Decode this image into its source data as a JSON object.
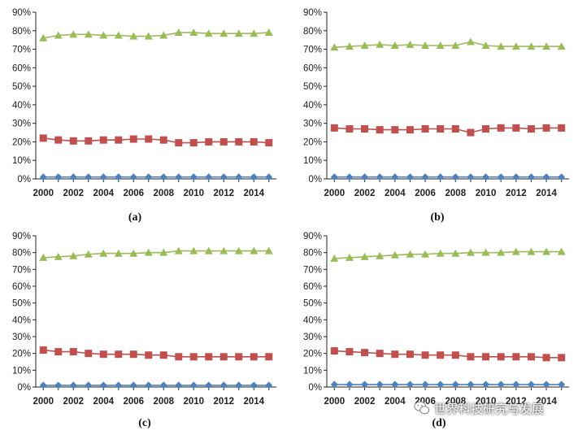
{
  "chart_data": [
    {
      "type": "line",
      "panel": "(a)",
      "x": [
        2000,
        2001,
        2002,
        2003,
        2004,
        2005,
        2006,
        2007,
        2008,
        2009,
        2010,
        2011,
        2012,
        2013,
        2014,
        2015
      ],
      "x_tick_labels": [
        "2000",
        "2002",
        "2004",
        "2006",
        "2008",
        "2010",
        "2012",
        "2014"
      ],
      "y_tick_labels": [
        "0%",
        "10%",
        "20%",
        "30%",
        "40%",
        "50%",
        "60%",
        "70%",
        "80%",
        "90%"
      ],
      "ylim": [
        0,
        90
      ],
      "grid": false,
      "series": [
        {
          "marker": "triangle",
          "color": "#9bbb59",
          "values": [
            76,
            77.5,
            78,
            78,
            77.5,
            77.5,
            77,
            77,
            77.5,
            79,
            79,
            78.5,
            78.5,
            78.5,
            78.5,
            79
          ]
        },
        {
          "marker": "square",
          "color": "#c0504d",
          "values": [
            22,
            21,
            20.5,
            20.5,
            21,
            21,
            21.5,
            21.5,
            21,
            19.5,
            19.5,
            20,
            20,
            20,
            20,
            19.5
          ]
        },
        {
          "marker": "diamond",
          "color": "#4f81bd",
          "values": [
            1,
            1,
            1,
            1,
            1,
            1,
            1,
            1,
            1,
            1,
            1,
            1,
            1,
            1,
            1,
            1
          ]
        }
      ]
    },
    {
      "type": "line",
      "panel": "(b)",
      "x": [
        2000,
        2001,
        2002,
        2003,
        2004,
        2005,
        2006,
        2007,
        2008,
        2009,
        2010,
        2011,
        2012,
        2013,
        2014,
        2015
      ],
      "x_tick_labels": [
        "2000",
        "2002",
        "2004",
        "2006",
        "2008",
        "2010",
        "2012",
        "2014"
      ],
      "y_tick_labels": [
        "0%",
        "10%",
        "20%",
        "30%",
        "40%",
        "50%",
        "60%",
        "70%",
        "80%",
        "90%"
      ],
      "ylim": [
        0,
        90
      ],
      "grid": false,
      "series": [
        {
          "marker": "triangle",
          "color": "#9bbb59",
          "values": [
            71,
            71.5,
            72,
            72.5,
            72,
            72.5,
            72,
            72,
            72,
            74,
            72,
            71.5,
            71.5,
            71.5,
            71.5,
            71.5
          ]
        },
        {
          "marker": "square",
          "color": "#c0504d",
          "values": [
            27.5,
            27,
            27,
            26.5,
            26.5,
            26.5,
            27,
            27,
            27,
            25,
            27,
            27.5,
            27.5,
            27,
            27.5,
            27.5
          ]
        },
        {
          "marker": "diamond",
          "color": "#4f81bd",
          "values": [
            1,
            1,
            1,
            1,
            1,
            1,
            1,
            1,
            1,
            1,
            1,
            1,
            1,
            1,
            1,
            1
          ]
        }
      ]
    },
    {
      "type": "line",
      "panel": "(c)",
      "x": [
        2000,
        2001,
        2002,
        2003,
        2004,
        2005,
        2006,
        2007,
        2008,
        2009,
        2010,
        2011,
        2012,
        2013,
        2014,
        2015
      ],
      "x_tick_labels": [
        "2000",
        "2002",
        "2004",
        "2006",
        "2008",
        "2010",
        "2012",
        "2014"
      ],
      "y_tick_labels": [
        "0%",
        "10%",
        "20%",
        "30%",
        "40%",
        "50%",
        "60%",
        "70%",
        "80%",
        "90%"
      ],
      "ylim": [
        0,
        90
      ],
      "grid": false,
      "series": [
        {
          "marker": "triangle",
          "color": "#9bbb59",
          "values": [
            77,
            77.5,
            78,
            79,
            79.5,
            79.5,
            79.5,
            80,
            80,
            81,
            81,
            81,
            81,
            81,
            81,
            81
          ]
        },
        {
          "marker": "square",
          "color": "#c0504d",
          "values": [
            22,
            21,
            21,
            20,
            19.5,
            19.5,
            19.5,
            19,
            19,
            18,
            18,
            18,
            18,
            18,
            18,
            18
          ]
        },
        {
          "marker": "diamond",
          "color": "#4f81bd",
          "values": [
            1,
            1,
            1,
            1,
            1,
            1,
            1,
            1,
            1,
            1,
            1,
            1,
            1,
            1,
            1,
            1
          ]
        }
      ]
    },
    {
      "type": "line",
      "panel": "(d)",
      "x": [
        2000,
        2001,
        2002,
        2003,
        2004,
        2005,
        2006,
        2007,
        2008,
        2009,
        2010,
        2011,
        2012,
        2013,
        2014,
        2015
      ],
      "x_tick_labels": [
        "2000",
        "2002",
        "2004",
        "2006",
        "2008",
        "2010",
        "2012",
        "2014"
      ],
      "y_tick_labels": [
        "0%",
        "10%",
        "20%",
        "30%",
        "40%",
        "50%",
        "60%",
        "70%",
        "80%",
        "90%"
      ],
      "ylim": [
        0,
        90
      ],
      "grid": false,
      "series": [
        {
          "marker": "triangle",
          "color": "#9bbb59",
          "values": [
            76.5,
            77,
            77.5,
            78,
            78.5,
            79,
            79,
            79.5,
            79.5,
            80,
            80,
            80,
            80.5,
            80.5,
            80.5,
            80.5
          ]
        },
        {
          "marker": "square",
          "color": "#c0504d",
          "values": [
            21.5,
            21,
            20.5,
            20,
            19.5,
            19.5,
            19,
            19,
            19,
            18,
            18,
            18,
            18,
            18,
            17.5,
            17.5
          ]
        },
        {
          "marker": "diamond",
          "color": "#4f81bd",
          "values": [
            1.5,
            1.5,
            1.5,
            1.5,
            1.5,
            1.5,
            1.5,
            1.5,
            1.5,
            1.5,
            1.5,
            1.5,
            1.5,
            1.5,
            1.5,
            1.5
          ]
        }
      ]
    }
  ],
  "watermark": {
    "icon": "wechat-icon",
    "text": "世界科技研究与发展"
  }
}
